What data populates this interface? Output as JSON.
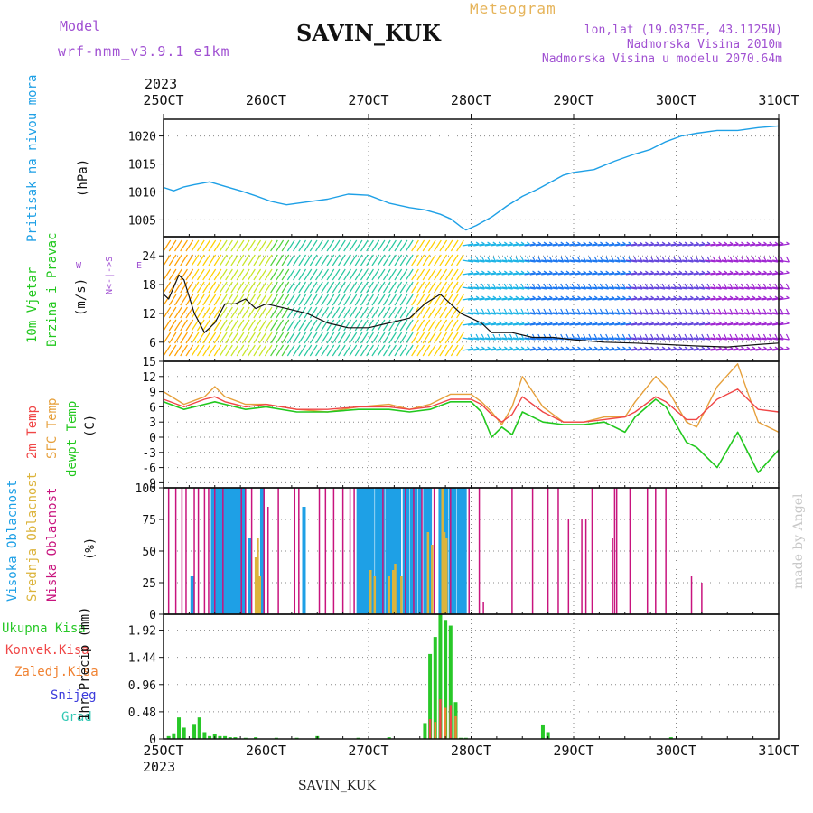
{
  "header": {
    "model_label": "Model",
    "model_name": "wrf-nmm_v3.9.1 e1km",
    "station": "SAVIN_KUK",
    "product": "Meteogram",
    "lonlat": "lon,lat (19.0375E, 43.1125N)",
    "elevation": "Nadmorska Visina 2010m",
    "model_elevation": "Nadmorska Visina u modelu 2070.64m",
    "year_top": "2023",
    "year_bottom": "2023",
    "footer_station": "SAVIN_KUK",
    "credit": "made by Angel"
  },
  "colors": {
    "pressure": "#1ea0e6",
    "temp2m": "#f04646",
    "sfc": "#e6a03c",
    "dewpt": "#22c81e",
    "vis": "#1ea0e6",
    "mid": "#dcb43c",
    "low": "#c8147e",
    "precip": "#28c828",
    "konv": "#f04646",
    "zaled": "#f08232",
    "snijeg": "#3c3cdc",
    "grad": "#32c8b4",
    "model_purple": "#a050d2"
  },
  "time_axis": {
    "labels": [
      "25OCT",
      "26OCT",
      "27OCT",
      "28OCT",
      "29OCT",
      "30OCT",
      "31OCT"
    ]
  },
  "panels": {
    "pressure": {
      "title": "Pritisak na nivou mora",
      "unit": "(hPa)"
    },
    "wind": {
      "title1": "10m Vjetar",
      "title2": "Brzina i Pravac",
      "unit": "(m/s)",
      "compass_ns": "N<-|->S",
      "compass_w": "W",
      "compass_e": "E"
    },
    "temp": {
      "title1": "2m Temp",
      "title2": "SFC Temp",
      "title3": "dewpt Temp",
      "unit": "(C)"
    },
    "cloud": {
      "title1": "Visoka Oblacnost",
      "title2": "Srednja Oblacnost",
      "title3": "Niska Oblacnost",
      "unit": "(%)"
    },
    "precip": {
      "title": "1hr Precip (mm)",
      "legend": [
        "Ukupna Kisa",
        "Konvek.Kisa",
        "Zaledj.Kisa",
        "Snijeg",
        "Grad"
      ]
    }
  },
  "chart_data": [
    {
      "type": "line",
      "panel": "pressure",
      "ylabel": "(hPa)",
      "ylim": [
        1002,
        1023
      ],
      "yticks": [
        1005,
        1010,
        1015,
        1020
      ],
      "grid": true,
      "series": [
        {
          "name": "Pritisak na nivou mora",
          "x": [
            0,
            0.1,
            0.2,
            0.3,
            0.45,
            0.6,
            0.75,
            0.9,
            1.05,
            1.2,
            1.4,
            1.6,
            1.8,
            2.0,
            2.2,
            2.4,
            2.55,
            2.7,
            2.8,
            2.9,
            2.95,
            3.05,
            3.2,
            3.35,
            3.5,
            3.65,
            3.8,
            3.9,
            4.0,
            4.2,
            4.4,
            4.6,
            4.75,
            4.9,
            5.05,
            5.2,
            5.4,
            5.6,
            5.8,
            6.0
          ],
          "values": [
            1010.8,
            1010.2,
            1010.9,
            1011.3,
            1011.8,
            1011.0,
            1010.2,
            1009.3,
            1008.3,
            1007.7,
            1008.2,
            1008.7,
            1009.6,
            1009.4,
            1008.0,
            1007.2,
            1006.8,
            1006.0,
            1005.2,
            1003.8,
            1003.2,
            1004.0,
            1005.5,
            1007.5,
            1009.2,
            1010.5,
            1012.0,
            1013.0,
            1013.5,
            1014.0,
            1015.5,
            1016.8,
            1017.6,
            1019.0,
            1020.0,
            1020.5,
            1021.0,
            1021.0,
            1021.5,
            1021.8
          ]
        }
      ]
    },
    {
      "type": "line",
      "panel": "wind",
      "ylabel": "(m/s)",
      "ylim": [
        2,
        28
      ],
      "yticks": [
        6,
        12,
        18,
        24
      ],
      "grid": true,
      "series": [
        {
          "name": "10m wind speed",
          "x": [
            0,
            0.05,
            0.15,
            0.2,
            0.3,
            0.4,
            0.5,
            0.6,
            0.7,
            0.8,
            0.9,
            1.0,
            1.2,
            1.4,
            1.6,
            1.8,
            2.0,
            2.2,
            2.4,
            2.55,
            2.7,
            2.8,
            2.9,
            3.0,
            3.1,
            3.2,
            3.4,
            3.6,
            3.8,
            4.0,
            4.3,
            4.6,
            4.9,
            5.2,
            5.5,
            5.8,
            6.0
          ],
          "values": [
            16,
            15,
            20,
            19,
            12,
            8,
            10,
            14,
            14,
            15,
            13,
            14,
            13,
            12,
            10,
            9,
            9,
            10,
            11,
            14,
            16,
            14,
            12,
            11,
            10,
            8,
            8,
            7,
            7,
            6.5,
            6,
            5.8,
            5.5,
            5.2,
            5,
            5.5,
            5.8
          ]
        }
      ]
    },
    {
      "type": "line",
      "panel": "temp",
      "ylabel": "(C)",
      "ylim": [
        -10,
        15
      ],
      "yticks": [
        -9,
        -6,
        -3,
        0,
        3,
        6,
        9,
        12,
        15
      ],
      "grid": true,
      "series": [
        {
          "name": "2m Temp",
          "x": [
            0,
            0.2,
            0.4,
            0.5,
            0.6,
            0.8,
            1.0,
            1.3,
            1.6,
            1.9,
            2.2,
            2.4,
            2.6,
            2.8,
            3.0,
            3.1,
            3.2,
            3.3,
            3.4,
            3.5,
            3.7,
            3.9,
            4.1,
            4.3,
            4.5,
            4.6,
            4.8,
            4.9,
            5.1,
            5.2,
            5.4,
            5.6,
            5.8,
            6.0
          ],
          "values": [
            7.5,
            6,
            7.5,
            8,
            7,
            6,
            6.5,
            5.5,
            5.5,
            6,
            6,
            5.5,
            6,
            7.5,
            7.5,
            6.5,
            4.5,
            3,
            4.5,
            8,
            5,
            3,
            3,
            3.5,
            4,
            5,
            8,
            7,
            3.5,
            3.5,
            7.5,
            9.5,
            5.5,
            5
          ]
        },
        {
          "name": "SFC Temp",
          "x": [
            0,
            0.2,
            0.4,
            0.5,
            0.6,
            0.8,
            1.0,
            1.3,
            1.6,
            1.9,
            2.2,
            2.4,
            2.6,
            2.8,
            3.0,
            3.1,
            3.2,
            3.3,
            3.4,
            3.5,
            3.7,
            3.9,
            4.1,
            4.3,
            4.5,
            4.6,
            4.8,
            4.9,
            5.1,
            5.2,
            5.4,
            5.6,
            5.8,
            6.0
          ],
          "values": [
            9,
            6.5,
            8,
            10,
            8,
            6.5,
            6.5,
            5.5,
            5,
            6,
            6.5,
            5.5,
            6.5,
            8.5,
            8.5,
            7,
            5,
            2.5,
            6,
            12,
            6,
            3,
            3,
            4,
            4,
            7,
            12,
            10,
            3,
            2,
            10,
            14.5,
            3,
            1
          ]
        },
        {
          "name": "dewpt Temp",
          "x": [
            0,
            0.2,
            0.4,
            0.5,
            0.6,
            0.8,
            1.0,
            1.3,
            1.6,
            1.9,
            2.2,
            2.4,
            2.6,
            2.8,
            3.0,
            3.1,
            3.2,
            3.3,
            3.4,
            3.5,
            3.7,
            3.9,
            4.1,
            4.3,
            4.5,
            4.6,
            4.8,
            4.9,
            5.1,
            5.2,
            5.4,
            5.6,
            5.8,
            6.0
          ],
          "values": [
            7,
            5.5,
            6.5,
            7,
            6.5,
            5.5,
            6,
            5,
            5,
            5.5,
            5.5,
            5,
            5.5,
            7,
            7,
            5,
            0,
            2,
            0.5,
            5,
            3,
            2.5,
            2.5,
            3,
            1,
            4,
            7.5,
            6,
            -1,
            -2,
            -6,
            1,
            -7,
            -2.5
          ]
        }
      ]
    },
    {
      "type": "bar",
      "panel": "cloud",
      "ylabel": "(%)",
      "ylim": [
        0,
        100
      ],
      "yticks": [
        0,
        25,
        50,
        75,
        100
      ],
      "grid": true,
      "series": [
        {
          "name": "Visoka Oblacnost",
          "x": [
            0.28,
            0.48,
            0.5,
            0.52,
            0.54,
            0.56,
            0.6,
            0.62,
            0.64,
            0.66,
            0.68,
            0.7,
            0.72,
            0.74,
            0.78,
            0.84,
            0.96,
            1.37,
            1.9,
            1.92,
            1.94,
            1.96,
            1.98,
            2.0,
            2.02,
            2.04,
            2.08,
            2.1,
            2.12,
            2.14,
            2.18,
            2.2,
            2.22,
            2.24,
            2.26,
            2.28,
            2.3,
            2.35,
            2.38,
            2.42,
            2.46,
            2.5,
            2.55,
            2.58,
            2.6,
            2.7,
            2.72,
            2.74,
            2.76,
            2.8,
            2.82,
            2.84,
            2.88,
            2.9,
            2.94,
            3.6,
            3.7,
            3.85,
            3.92,
            3.96,
            2.3
          ],
          "values": [
            30,
            100,
            100,
            100,
            100,
            100,
            100,
            100,
            100,
            100,
            100,
            100,
            100,
            100,
            100,
            60,
            100,
            85,
            100,
            100,
            100,
            100,
            100,
            100,
            100,
            100,
            100,
            100,
            100,
            100,
            100,
            100,
            100,
            100,
            100,
            100,
            100,
            100,
            100,
            100,
            100,
            100,
            100,
            100,
            100,
            100,
            100,
            100,
            100,
            100,
            100,
            100,
            100,
            100,
            100,
            0,
            0,
            0,
            0,
            0,
            100
          ]
        },
        {
          "name": "Srednja Oblacnost",
          "x": [
            0.9,
            0.92,
            0.94,
            2.02,
            2.06,
            2.2,
            2.24,
            2.26,
            2.32,
            2.58,
            2.62,
            2.72,
            2.74,
            2.76
          ],
          "values": [
            45,
            60,
            30,
            35,
            30,
            30,
            35,
            40,
            30,
            65,
            55,
            100,
            65,
            60
          ]
        },
        {
          "name": "Niska Oblacnost",
          "x": [
            0.05,
            0.12,
            0.18,
            0.22,
            0.3,
            0.34,
            0.4,
            0.44,
            0.5,
            0.58,
            0.76,
            0.8,
            0.86,
            0.98,
            1.02,
            1.12,
            1.28,
            1.32,
            1.52,
            1.58,
            1.66,
            1.75,
            1.82,
            1.86,
            2.14,
            2.36,
            2.44,
            2.52,
            2.64,
            2.8,
            2.98,
            3.08,
            3.12,
            3.4,
            3.6,
            3.75,
            3.85,
            3.95,
            4.08,
            4.12,
            4.18,
            4.38,
            4.4,
            4.42,
            4.55,
            4.72,
            4.8,
            4.9,
            5.15,
            5.25
          ],
          "values": [
            100,
            100,
            100,
            100,
            100,
            100,
            100,
            100,
            100,
            100,
            100,
            100,
            100,
            100,
            85,
            100,
            100,
            100,
            100,
            100,
            100,
            100,
            100,
            100,
            100,
            100,
            100,
            100,
            100,
            100,
            100,
            100,
            10,
            100,
            100,
            100,
            100,
            75,
            75,
            75,
            100,
            60,
            100,
            100,
            100,
            100,
            100,
            100,
            30,
            25
          ]
        }
      ]
    },
    {
      "type": "bar",
      "panel": "precip",
      "ylabel": "1hr Precip (mm)",
      "ylim": [
        0,
        2.2
      ],
      "yticks": [
        0,
        0.48,
        0.96,
        1.44,
        1.92
      ],
      "grid": true,
      "series": [
        {
          "name": "Ukupna Kisa",
          "x": [
            0.05,
            0.1,
            0.15,
            0.2,
            0.3,
            0.35,
            0.4,
            0.45,
            0.5,
            0.55,
            0.6,
            0.65,
            0.7,
            0.8,
            0.9,
            1.1,
            1.3,
            1.5,
            1.9,
            2.2,
            2.55,
            2.6,
            2.65,
            2.7,
            2.75,
            2.8,
            2.85,
            2.9,
            2.95,
            3.7,
            3.75,
            4.95
          ],
          "values": [
            0.05,
            0.1,
            0.38,
            0.2,
            0.25,
            0.38,
            0.12,
            0.05,
            0.08,
            0.05,
            0.05,
            0.03,
            0.03,
            0.02,
            0.03,
            0.02,
            0.02,
            0.05,
            0.02,
            0.03,
            0.28,
            1.5,
            1.8,
            2.2,
            2.1,
            2.0,
            0.65,
            0.02,
            0.02,
            0.24,
            0.12,
            0.03
          ]
        },
        {
          "name": "Konvek.Kisa",
          "x": [
            2.6,
            2.7,
            2.8
          ],
          "values": [
            0.35,
            0.7,
            0.6
          ]
        },
        {
          "name": "Zaledj.Kisa",
          "x": [
            2.65,
            2.75,
            2.85
          ],
          "values": [
            0.3,
            0.55,
            0.4
          ]
        },
        {
          "name": "Snijeg",
          "x": [],
          "values": []
        },
        {
          "name": "Grad",
          "x": [],
          "values": []
        }
      ]
    }
  ]
}
